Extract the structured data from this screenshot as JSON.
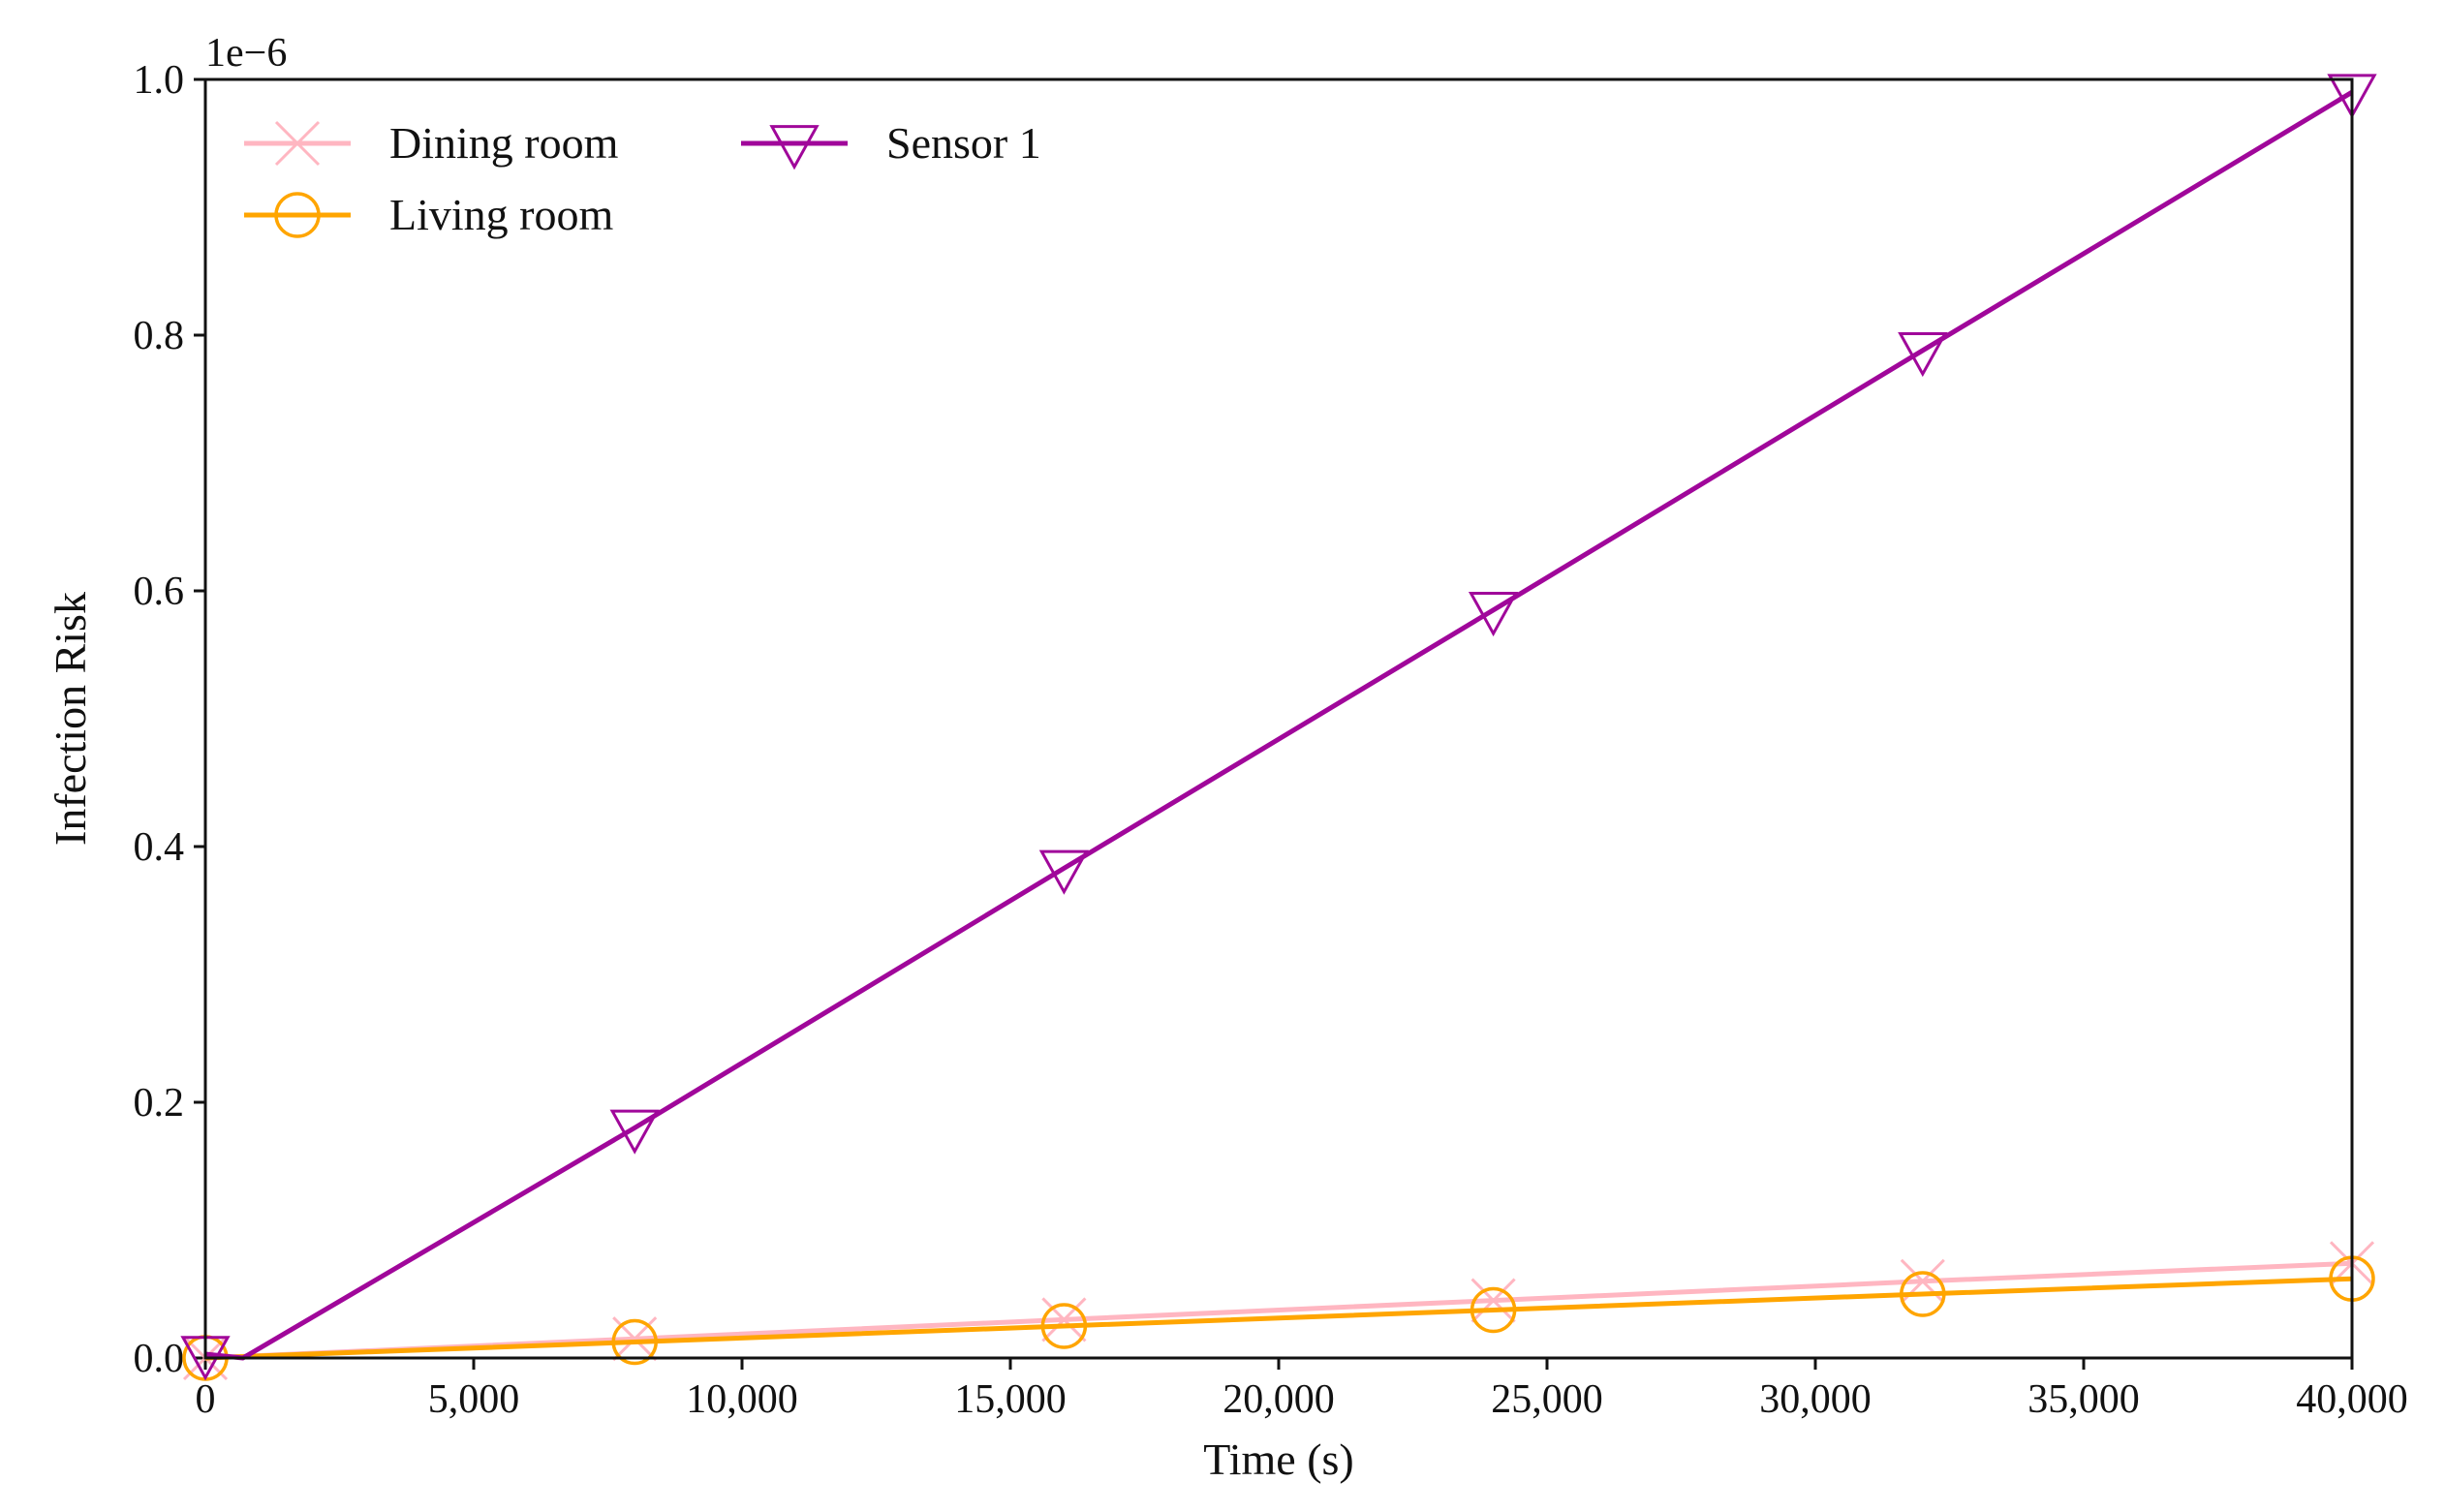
{
  "chart_data": {
    "type": "line",
    "xlabel": "Time (s)",
    "ylabel": "Infection Risk",
    "y_offset_label": "1e−6",
    "xlim": [
      0,
      40000
    ],
    "ylim": [
      0,
      1.0
    ],
    "x_ticks": [
      0,
      5000,
      10000,
      15000,
      20000,
      25000,
      30000,
      35000,
      40000
    ],
    "x_tick_labels": [
      "0",
      "5,000",
      "10,000",
      "15,000",
      "20,000",
      "25,000",
      "30,000",
      "35,000",
      "40,000"
    ],
    "y_ticks": [
      0.0,
      0.2,
      0.4,
      0.6,
      0.8,
      1.0
    ],
    "y_tick_labels": [
      "0.0",
      "0.2",
      "0.4",
      "0.6",
      "0.8",
      "1.0"
    ],
    "grid": false,
    "legend_position": "top-left",
    "series": [
      {
        "name": "Dining room",
        "color": "#ffb6c1",
        "marker": "x",
        "x": [
          0,
          8000,
          16000,
          24000,
          32000,
          40000
        ],
        "y": [
          0.0,
          0.015,
          0.03,
          0.045,
          0.06,
          0.074
        ]
      },
      {
        "name": "Living room",
        "color": "#ffa500",
        "marker": "circle",
        "x": [
          0,
          8000,
          16000,
          24000,
          32000,
          40000
        ],
        "y": [
          0.0,
          0.0125,
          0.025,
          0.0375,
          0.05,
          0.062
        ]
      },
      {
        "name": "Sensor 1",
        "color": "#a0079a",
        "marker": "triangle-down",
        "x": [
          0,
          700,
          8000,
          16000,
          24000,
          32000,
          40000
        ],
        "y": [
          0.003,
          0.0,
          0.18,
          0.383,
          0.585,
          0.788,
          0.99
        ]
      }
    ]
  }
}
